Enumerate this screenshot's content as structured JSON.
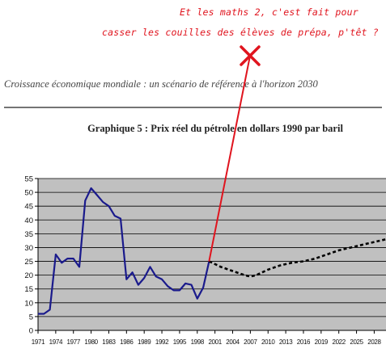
{
  "document": {
    "header_text": "Croissance économique mondiale : un scénario de référence à l'horizon 2030"
  },
  "annotation": {
    "line1": "Et les maths 2, c'est fait pour",
    "line2": "casser les couilles des élèves de prépa, p'têt ?",
    "color": "#e0141e",
    "marker": "✕"
  },
  "chart_data": {
    "type": "line",
    "title": "Graphique 5 : Prix réel du pétrole en dollars 1990 par baril",
    "xlabel": "",
    "ylabel": "",
    "ylim": [
      0,
      55
    ],
    "xlim": [
      1971,
      2030
    ],
    "grid": true,
    "legend": "none",
    "plot_background": "#c0c0c0",
    "y_ticks": [
      0,
      5,
      10,
      15,
      20,
      25,
      30,
      35,
      40,
      45,
      50,
      55
    ],
    "x_tick_labels": [
      "1971",
      "1974",
      "1977",
      "1980",
      "1983",
      "1986",
      "1989",
      "1992",
      "1995",
      "1998",
      "2001",
      "2004",
      "2007",
      "2010",
      "2013",
      "2016",
      "2019",
      "2022",
      "2025",
      "2028"
    ],
    "series": [
      {
        "style": "solid",
        "color": "#1a1a8c",
        "points": [
          [
            1971,
            6
          ],
          [
            1972,
            6
          ],
          [
            1973,
            7.5
          ],
          [
            1974,
            27.5
          ],
          [
            1975,
            24.5
          ],
          [
            1976,
            26
          ],
          [
            1977,
            26
          ],
          [
            1978,
            23
          ],
          [
            1979,
            47
          ],
          [
            1980,
            51.5
          ],
          [
            1981,
            49
          ],
          [
            1982,
            46.5
          ],
          [
            1983,
            45
          ],
          [
            1984,
            41.5
          ],
          [
            1985,
            40.5
          ],
          [
            1986,
            18.5
          ],
          [
            1987,
            21
          ],
          [
            1988,
            16.5
          ],
          [
            1989,
            19
          ],
          [
            1990,
            23
          ],
          [
            1991,
            19.5
          ],
          [
            1992,
            18.5
          ],
          [
            1993,
            16
          ],
          [
            1994,
            14.5
          ],
          [
            1995,
            14.5
          ],
          [
            1996,
            17
          ],
          [
            1997,
            16.5
          ],
          [
            1998,
            11.5
          ],
          [
            1999,
            15.5
          ],
          [
            2000,
            25
          ]
        ]
      },
      {
        "style": "dashed",
        "color": "#000000",
        "points": [
          [
            2000,
            25
          ],
          [
            2002,
            23
          ],
          [
            2004,
            21.5
          ],
          [
            2006,
            20
          ],
          [
            2007,
            19.5
          ],
          [
            2008,
            20
          ],
          [
            2010,
            22
          ],
          [
            2012,
            23.5
          ],
          [
            2014,
            24.5
          ],
          [
            2016,
            25
          ],
          [
            2018,
            26
          ],
          [
            2020,
            27.5
          ],
          [
            2022,
            29
          ],
          [
            2024,
            30
          ],
          [
            2026,
            31
          ],
          [
            2028,
            32
          ],
          [
            2030,
            33
          ]
        ]
      }
    ],
    "overlay_line": {
      "color": "#e0141e",
      "from_x": 2000,
      "from_y": 25
    }
  }
}
